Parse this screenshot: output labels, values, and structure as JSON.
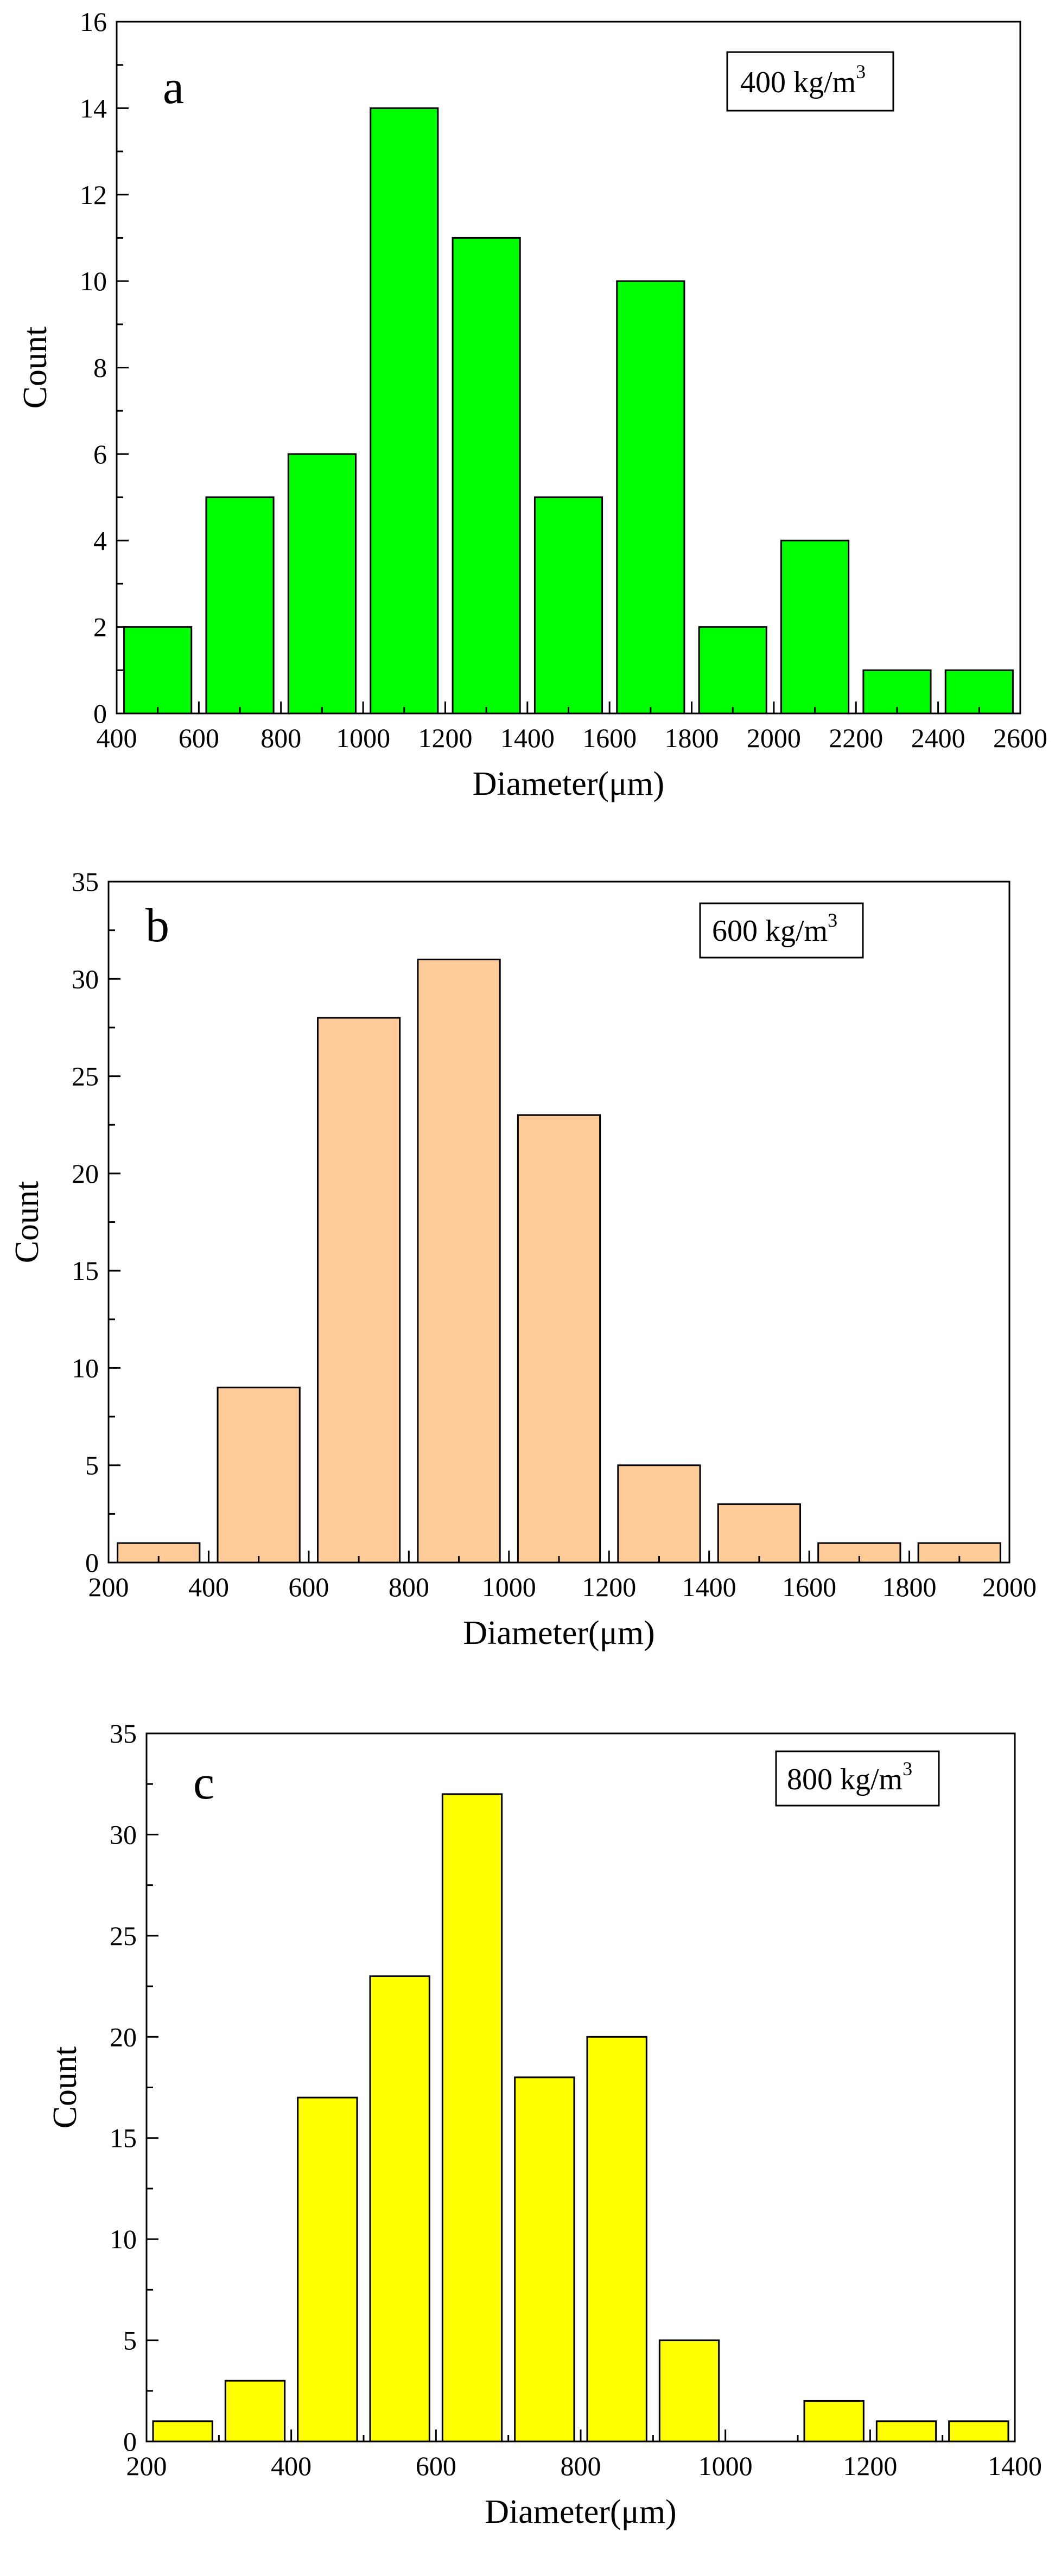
{
  "chart_data": [
    {
      "type": "bar",
      "panel_label": "a",
      "title": "",
      "annotation": {
        "text": "400 kg/m",
        "sup": "3"
      },
      "xlabel": "Diameter(μm)",
      "ylabel": "Count",
      "xlim": [
        400,
        2600
      ],
      "ylim": [
        0,
        16
      ],
      "xticks": [
        400,
        600,
        800,
        1000,
        1200,
        1400,
        1600,
        1800,
        2000,
        2200,
        2400,
        2600
      ],
      "yticks": [
        0,
        2,
        4,
        6,
        8,
        10,
        12,
        14,
        16
      ],
      "bin_width": 200,
      "bar_fraction": 0.82,
      "bins": [
        400,
        600,
        800,
        1000,
        1200,
        1400,
        1600,
        1800,
        2000,
        2200,
        2400
      ],
      "values": [
        2,
        5,
        6,
        14,
        11,
        5,
        10,
        2,
        4,
        1,
        1
      ],
      "color": "#00ff00",
      "grid": false
    },
    {
      "type": "bar",
      "panel_label": "b",
      "title": "",
      "annotation": {
        "text": "600 kg/m",
        "sup": "3"
      },
      "xlabel": "Diameter(μm)",
      "ylabel": "Count",
      "xlim": [
        200,
        2000
      ],
      "ylim": [
        0,
        35
      ],
      "xticks": [
        200,
        400,
        600,
        800,
        1000,
        1200,
        1400,
        1600,
        1800,
        2000
      ],
      "yticks": [
        0,
        5,
        10,
        15,
        20,
        25,
        30,
        35
      ],
      "bin_width": 200,
      "bar_fraction": 0.82,
      "bins": [
        200,
        400,
        600,
        800,
        1000,
        1200,
        1400,
        1600,
        1800
      ],
      "values": [
        1,
        9,
        28,
        31,
        23,
        5,
        3,
        1,
        1
      ],
      "color": "#ffcc99",
      "grid": false
    },
    {
      "type": "bar",
      "panel_label": "c",
      "title": "",
      "annotation": {
        "text": "800 kg/m",
        "sup": "3"
      },
      "xlabel": "Diameter(μm)",
      "ylabel": "Count",
      "xlim": [
        200,
        1400
      ],
      "ylim": [
        0,
        35
      ],
      "xticks": [
        200,
        400,
        600,
        800,
        1000,
        1200,
        1400
      ],
      "yticks": [
        0,
        5,
        10,
        15,
        20,
        25,
        30,
        35
      ],
      "bin_width": 100,
      "bar_fraction": 0.82,
      "bins": [
        200,
        300,
        400,
        500,
        600,
        700,
        800,
        900,
        1000,
        1100,
        1200,
        1300
      ],
      "values": [
        1,
        3,
        17,
        23,
        32,
        18,
        20,
        5,
        0,
        2,
        1,
        1
      ],
      "color": "#ffff00",
      "grid": false
    }
  ]
}
